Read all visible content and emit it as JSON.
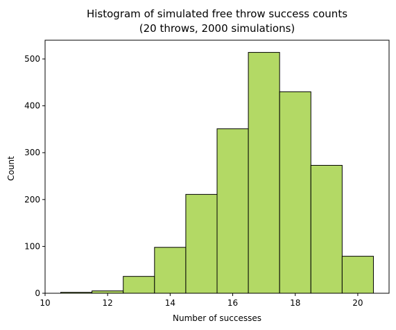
{
  "chart_data": {
    "type": "bar",
    "title": [
      "Histogram of simulated free throw success counts",
      "(20 throws, 2000 simulations)"
    ],
    "xlabel": "Number of successes",
    "ylabel": "Count",
    "xlim": [
      10,
      21
    ],
    "ylim": [
      0,
      540
    ],
    "bar_color": "#b3d965",
    "edge_color": "#000000",
    "bins": [
      {
        "start": 10.5,
        "end": 11.5,
        "count": 2
      },
      {
        "start": 11.5,
        "end": 12.5,
        "count": 5
      },
      {
        "start": 12.5,
        "end": 13.5,
        "count": 36
      },
      {
        "start": 13.5,
        "end": 14.5,
        "count": 98
      },
      {
        "start": 14.5,
        "end": 15.5,
        "count": 211
      },
      {
        "start": 15.5,
        "end": 16.5,
        "count": 351
      },
      {
        "start": 16.5,
        "end": 17.5,
        "count": 514
      },
      {
        "start": 17.5,
        "end": 18.5,
        "count": 430
      },
      {
        "start": 18.5,
        "end": 19.5,
        "count": 273
      },
      {
        "start": 19.5,
        "end": 20.5,
        "count": 79
      }
    ],
    "x_ticks": [
      10,
      12,
      14,
      16,
      18,
      20
    ],
    "y_ticks": [
      0,
      100,
      200,
      300,
      400,
      500
    ],
    "grid": false,
    "legend": "none"
  }
}
